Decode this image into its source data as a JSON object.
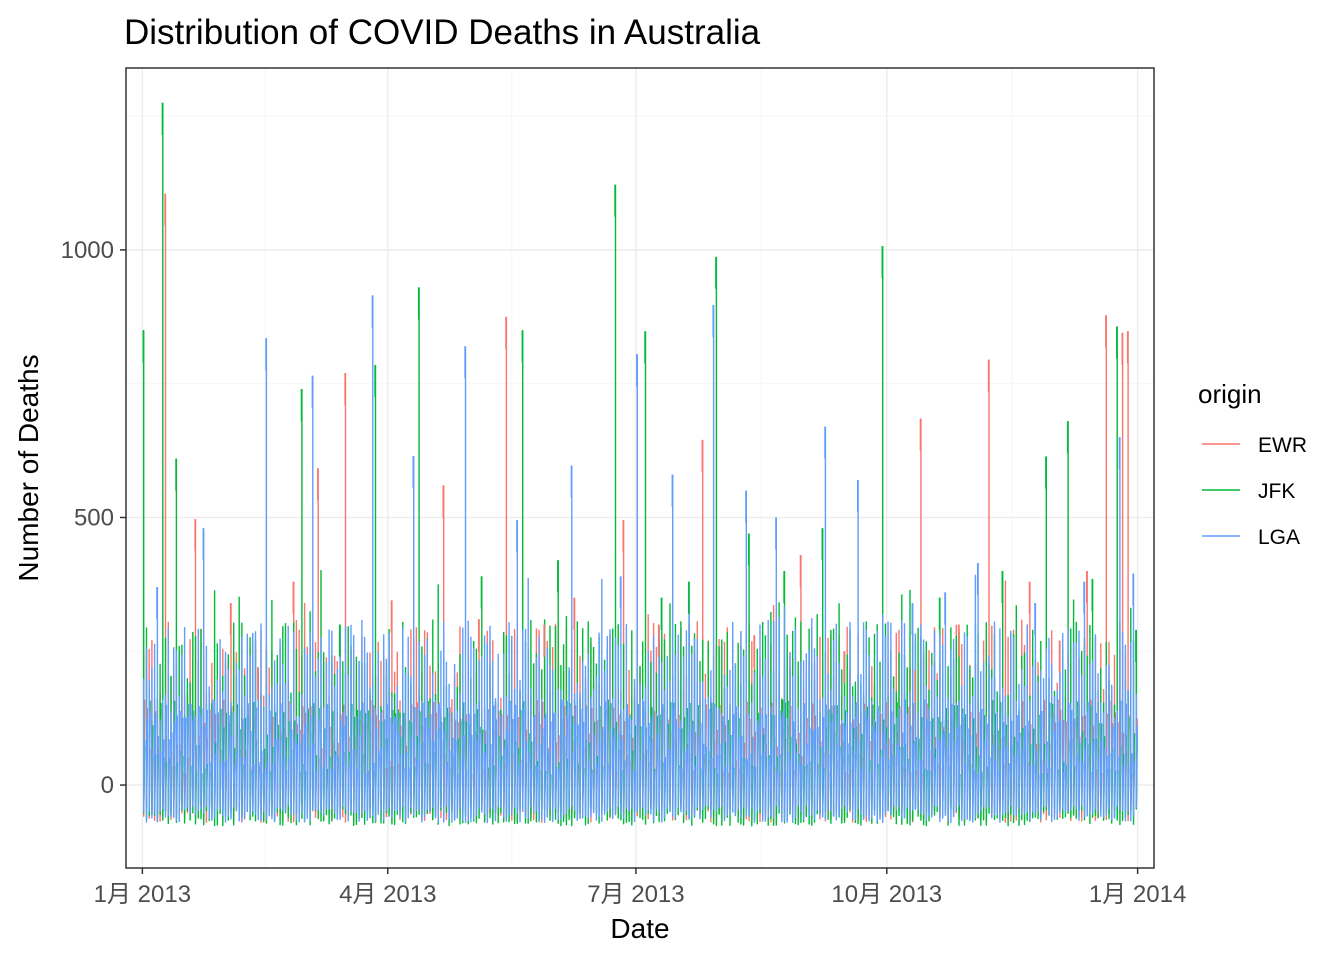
{
  "chart_data": {
    "type": "line",
    "title": "Distribution of COVID Deaths in Australia",
    "xlabel": "Date",
    "ylabel": "Number of Deaths",
    "x_range": [
      "2012-12-26",
      "2014-01-07"
    ],
    "y_range": [
      -155,
      1340
    ],
    "y_ticks": [
      0,
      500,
      1000
    ],
    "x_ticks": [
      {
        "date": "2013-01-01",
        "label": "1月 2013"
      },
      {
        "date": "2013-04-01",
        "label": "4月 2013"
      },
      {
        "date": "2013-07-01",
        "label": "7月 2013"
      },
      {
        "date": "2013-10-01",
        "label": "10月 2013"
      },
      {
        "date": "2014-01-01",
        "label": "1月 2014"
      }
    ],
    "grid": true,
    "legend": {
      "title": "origin",
      "placement": "right"
    },
    "series": [
      {
        "name": "EWR",
        "color": "#F8766D",
        "points": [
          [
            "2013-01-09",
            1105
          ],
          [
            "2013-01-20",
            497
          ],
          [
            "2013-02-02",
            340
          ],
          [
            "2013-02-12",
            220
          ],
          [
            "2013-02-25",
            380
          ],
          [
            "2013-03-06",
            592
          ],
          [
            "2013-03-16",
            770
          ],
          [
            "2013-04-02",
            345
          ],
          [
            "2013-04-21",
            560
          ],
          [
            "2013-05-04",
            310
          ],
          [
            "2013-05-14",
            875
          ],
          [
            "2013-05-28",
            300
          ],
          [
            "2013-06-08",
            350
          ],
          [
            "2013-06-26",
            495
          ],
          [
            "2013-07-09",
            300
          ],
          [
            "2013-07-25",
            645
          ],
          [
            "2013-08-13",
            280
          ],
          [
            "2013-08-30",
            430
          ],
          [
            "2013-09-15",
            250
          ],
          [
            "2013-10-11",
            215
          ],
          [
            "2013-10-13",
            685
          ],
          [
            "2013-10-27",
            300
          ],
          [
            "2013-11-07",
            795
          ],
          [
            "2013-11-22",
            380
          ],
          [
            "2013-12-03",
            270
          ],
          [
            "2013-12-13",
            400
          ],
          [
            "2013-12-20",
            878
          ],
          [
            "2013-12-26",
            845
          ],
          [
            "2013-12-28",
            848
          ]
        ]
      },
      {
        "name": "JFK",
        "color": "#00BA38",
        "points": [
          [
            "2013-01-01",
            850
          ],
          [
            "2013-01-08",
            1275
          ],
          [
            "2013-01-13",
            610
          ],
          [
            "2013-02-28",
            740
          ],
          [
            "2013-03-14",
            300
          ],
          [
            "2013-03-27",
            785
          ],
          [
            "2013-04-12",
            930
          ],
          [
            "2013-05-05",
            390
          ],
          [
            "2013-05-20",
            850
          ],
          [
            "2013-06-02",
            420
          ],
          [
            "2013-06-23",
            1122
          ],
          [
            "2013-07-04",
            848
          ],
          [
            "2013-07-10",
            350
          ],
          [
            "2013-07-20",
            380
          ],
          [
            "2013-07-30",
            987
          ],
          [
            "2013-08-11",
            470
          ],
          [
            "2013-08-24",
            400
          ],
          [
            "2013-09-07",
            480
          ],
          [
            "2013-09-29",
            1007
          ],
          [
            "2013-10-20",
            350
          ],
          [
            "2013-11-12",
            400
          ],
          [
            "2013-11-28",
            614
          ],
          [
            "2013-12-06",
            680
          ],
          [
            "2013-12-15",
            385
          ],
          [
            "2013-12-24",
            857
          ],
          [
            "2013-12-31",
            290
          ]
        ]
      },
      {
        "name": "LGA",
        "color": "#619CFF",
        "points": [
          [
            "2013-01-06",
            370
          ],
          [
            "2013-01-23",
            480
          ],
          [
            "2013-02-15",
            835
          ],
          [
            "2013-03-04",
            765
          ],
          [
            "2013-03-26",
            915
          ],
          [
            "2013-04-10",
            615
          ],
          [
            "2013-04-29",
            820
          ],
          [
            "2013-05-18",
            495
          ],
          [
            "2013-06-07",
            597
          ],
          [
            "2013-06-25",
            390
          ],
          [
            "2013-07-01",
            805
          ],
          [
            "2013-07-14",
            580
          ],
          [
            "2013-07-29",
            897
          ],
          [
            "2013-08-10",
            550
          ],
          [
            "2013-08-21",
            500
          ],
          [
            "2013-09-08",
            670
          ],
          [
            "2013-09-20",
            570
          ],
          [
            "2013-10-10",
            340
          ],
          [
            "2013-10-22",
            360
          ],
          [
            "2013-11-03",
            415
          ],
          [
            "2013-11-24",
            340
          ],
          [
            "2013-12-12",
            380
          ],
          [
            "2013-12-25",
            650
          ],
          [
            "2013-12-30",
            395
          ]
        ]
      }
    ]
  }
}
